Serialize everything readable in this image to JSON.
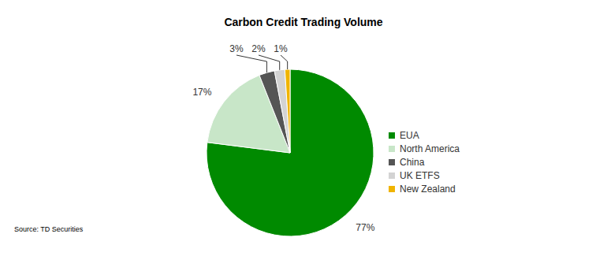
{
  "chart_data": {
    "type": "pie",
    "title": "Carbon Credit Trading Volume",
    "source": "Source: TD Securities",
    "categories": [
      "EUA",
      "North America",
      "China",
      "UK ETFS",
      "New Zealand"
    ],
    "values": [
      77,
      17,
      3,
      2,
      1
    ],
    "value_labels": [
      "77%",
      "17%",
      "3%",
      "2%",
      "1%"
    ],
    "colors": [
      "#008a00",
      "#c8e6c8",
      "#555555",
      "#d3d3d3",
      "#f0b400"
    ],
    "data_labels": true,
    "legend": "right"
  }
}
